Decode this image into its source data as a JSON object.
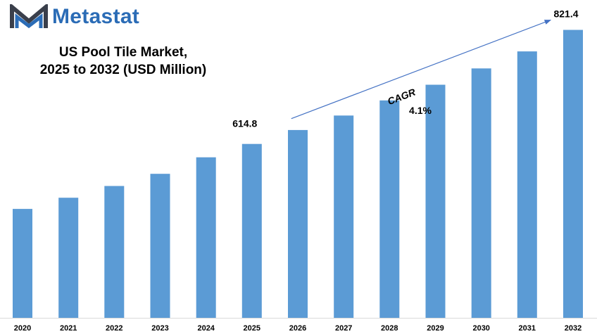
{
  "brand": {
    "name": "Metastat",
    "logo_icon": "metastat-m-logo-icon",
    "color": "#2b6cb6",
    "icon_color": "#3a3f4b"
  },
  "title_lines": [
    "US Pool Tile Market,",
    "2025 to 2032 (USD Million)"
  ],
  "cagr": {
    "label": "CAGR",
    "value": "4.1%",
    "arrow_color": "#4472c4"
  },
  "chart_data": {
    "type": "bar",
    "title": "US Pool Tile Market, 2025 to 2032 (USD Million)",
    "categories": [
      "2020",
      "2021",
      "2022",
      "2023",
      "2024",
      "2025",
      "2026",
      "2027",
      "2028",
      "2029",
      "2030",
      "2031",
      "2032"
    ],
    "values": [
      497.2,
      517.5,
      538.7,
      560.8,
      590.6,
      614.8,
      640.0,
      666.3,
      693.6,
      722.0,
      751.6,
      782.4,
      821.4
    ],
    "data_labels": [
      {
        "category": "2025",
        "text": "614.8"
      },
      {
        "category": "2032",
        "text": "821.4"
      }
    ],
    "xlabel": "",
    "ylabel": "",
    "ylim": [
      300,
      850
    ],
    "grid": false,
    "bar_color": "#5b9bd5"
  }
}
